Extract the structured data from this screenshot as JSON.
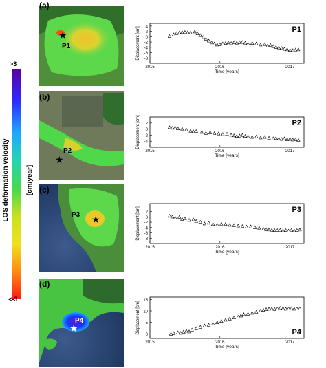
{
  "colorbar": {
    "title": "LOS deformation velocity",
    "unit": "[cm/year]",
    "max_label": ">3",
    "min_label": "<-3",
    "colors": [
      "#5b00a0",
      "#2b2bff",
      "#1fa8ff",
      "#22d6b0",
      "#45d94d",
      "#c8e21f",
      "#f0e01c",
      "#ff8a12",
      "#ff1a10"
    ]
  },
  "panels": [
    {
      "letter": "(a)",
      "point": "P1",
      "tag": "P1"
    },
    {
      "letter": "(b)",
      "point": "P2",
      "tag": "P2"
    },
    {
      "letter": "(c)",
      "point": "P3",
      "tag": "P3"
    },
    {
      "letter": "(d)",
      "point": "P4",
      "tag": "P4"
    }
  ],
  "chart_data": [
    {
      "type": "scatter",
      "tag": "P1",
      "xlabel": "Time [years]",
      "ylabel": "Displacement [cm]",
      "xlim": [
        2015,
        2017.2
      ],
      "ylim": [
        -10,
        5
      ],
      "xticks": [
        "2015",
        "2016",
        "2017"
      ],
      "yticks": [
        "4",
        "2",
        "0",
        "-2",
        "-4",
        "-6",
        "-8"
      ],
      "x": [
        2015.28,
        2015.34,
        2015.38,
        2015.42,
        2015.46,
        2015.5,
        2015.54,
        2015.58,
        2015.64,
        2015.68,
        2015.72,
        2015.76,
        2015.8,
        2015.84,
        2015.88,
        2015.92,
        2015.96,
        2016.0,
        2016.04,
        2016.08,
        2016.12,
        2016.16,
        2016.2,
        2016.24,
        2016.28,
        2016.32,
        2016.36,
        2016.4,
        2016.46,
        2016.52,
        2016.58,
        2016.64,
        2016.68,
        2016.72,
        2016.76,
        2016.8,
        2016.84,
        2016.88,
        2016.92,
        2016.96,
        2017.0,
        2017.04,
        2017.08,
        2017.12
      ],
      "y": [
        0.2,
        0.8,
        1.3,
        1.5,
        1.7,
        1.7,
        1.6,
        1.5,
        1.9,
        1.2,
        0.5,
        -0.2,
        -0.8,
        -1.5,
        -2.2,
        -2.6,
        -3.0,
        -2.9,
        -2.6,
        -2.4,
        -2.2,
        -2.5,
        -2.1,
        -2.3,
        -2.1,
        -2.0,
        -2.3,
        -2.6,
        -2.4,
        -2.6,
        -3.0,
        -2.8,
        -3.4,
        -3.1,
        -3.6,
        -3.9,
        -4.1,
        -4.3,
        -4.6,
        -4.8,
        -5.0,
        -5.1,
        -4.9,
        -4.8
      ]
    },
    {
      "type": "scatter",
      "tag": "P2",
      "xlabel": "Time [years]",
      "ylabel": "Displacement [cm]",
      "xlim": [
        2015,
        2017.2
      ],
      "ylim": [
        -6,
        4
      ],
      "xticks": [
        "2015",
        "2016",
        "2017"
      ],
      "yticks": [
        "2",
        "0",
        "-2",
        "-4"
      ],
      "x": [
        2015.28,
        2015.32,
        2015.36,
        2015.4,
        2015.46,
        2015.52,
        2015.58,
        2015.62,
        2015.66,
        2015.74,
        2015.8,
        2015.86,
        2015.92,
        2015.98,
        2016.04,
        2016.1,
        2016.16,
        2016.2,
        2016.24,
        2016.28,
        2016.32,
        2016.36,
        2016.4,
        2016.46,
        2016.52,
        2016.58,
        2016.64,
        2016.7,
        2016.76,
        2016.8,
        2016.84,
        2016.88,
        2016.92,
        2016.96,
        2017.0,
        2017.04,
        2017.08,
        2017.12
      ],
      "y": [
        0.6,
        0.4,
        0.5,
        0.2,
        0.1,
        -0.2,
        -0.6,
        -0.8,
        -0.7,
        -1.0,
        -1.3,
        -1.1,
        -1.4,
        -1.5,
        -1.7,
        -1.6,
        -1.9,
        -2.1,
        -2.3,
        -2.2,
        -2.0,
        -2.3,
        -2.4,
        -2.6,
        -2.5,
        -2.8,
        -2.6,
        -2.9,
        -3.1,
        -3.0,
        -3.2,
        -3.3,
        -3.1,
        -3.4,
        -3.3,
        -3.5,
        -3.4,
        -3.6
      ]
    },
    {
      "type": "scatter",
      "tag": "P3",
      "xlabel": "Time [years]",
      "ylabel": "Displacement [cm]",
      "xlim": [
        2015,
        2017.2
      ],
      "ylim": [
        -10,
        5
      ],
      "xticks": [
        "2015",
        "2016",
        "2017"
      ],
      "yticks": [
        "2",
        "0",
        "-2",
        "-4",
        "-6",
        "-8"
      ],
      "x": [
        2015.28,
        2015.32,
        2015.36,
        2015.42,
        2015.46,
        2015.5,
        2015.56,
        2015.62,
        2015.66,
        2015.72,
        2015.78,
        2015.84,
        2015.9,
        2015.96,
        2016.02,
        2016.08,
        2016.14,
        2016.2,
        2016.26,
        2016.32,
        2016.38,
        2016.44,
        2016.5,
        2016.56,
        2016.62,
        2016.66,
        2016.7,
        2016.74,
        2016.78,
        2016.82,
        2016.86,
        2016.9,
        2016.94,
        2016.98,
        2017.02,
        2017.06,
        2017.1,
        2017.14
      ],
      "y": [
        0.4,
        0.1,
        -0.3,
        0.0,
        -0.8,
        -0.6,
        -1.2,
        -1.0,
        -1.6,
        -1.9,
        -2.5,
        -2.2,
        -2.7,
        -2.9,
        -2.6,
        -2.7,
        -3.0,
        -3.1,
        -3.3,
        -3.5,
        -3.7,
        -3.6,
        -3.9,
        -4.1,
        -4.5,
        -4.7,
        -4.8,
        -4.9,
        -5.0,
        -5.0,
        -4.9,
        -5.1,
        -5.0,
        -5.2,
        -4.9,
        -5.1,
        -5.0,
        -4.8
      ]
    },
    {
      "type": "scatter",
      "tag": "P4",
      "xlabel": "Time [years]",
      "ylabel": "Displacement [cm]",
      "xlim": [
        2015,
        2017.2
      ],
      "ylim": [
        -2,
        16
      ],
      "xticks": [
        "2015",
        "2016",
        "2017"
      ],
      "yticks": [
        "15",
        "10",
        "5",
        "0"
      ],
      "x": [
        2015.3,
        2015.34,
        2015.4,
        2015.44,
        2015.48,
        2015.52,
        2015.56,
        2015.6,
        2015.66,
        2015.72,
        2015.78,
        2015.84,
        2015.9,
        2015.96,
        2016.02,
        2016.08,
        2016.14,
        2016.2,
        2016.26,
        2016.3,
        2016.34,
        2016.4,
        2016.46,
        2016.52,
        2016.58,
        2016.62,
        2016.66,
        2016.7,
        2016.74,
        2016.78,
        2016.82,
        2016.86,
        2016.9,
        2016.94,
        2016.98,
        2017.02,
        2017.06,
        2017.1,
        2017.14
      ],
      "y": [
        0.0,
        0.3,
        0.6,
        0.4,
        0.9,
        1.3,
        1.0,
        1.8,
        2.4,
        3.0,
        3.6,
        3.9,
        4.4,
        5.0,
        5.6,
        6.1,
        6.6,
        7.1,
        7.4,
        7.9,
        8.5,
        8.7,
        9.1,
        9.6,
        10.1,
        10.4,
        10.7,
        10.9,
        11.0,
        10.8,
        11.0,
        11.2,
        11.1,
        10.9,
        11.0,
        11.1,
        10.9,
        11.0,
        11.1
      ]
    }
  ]
}
